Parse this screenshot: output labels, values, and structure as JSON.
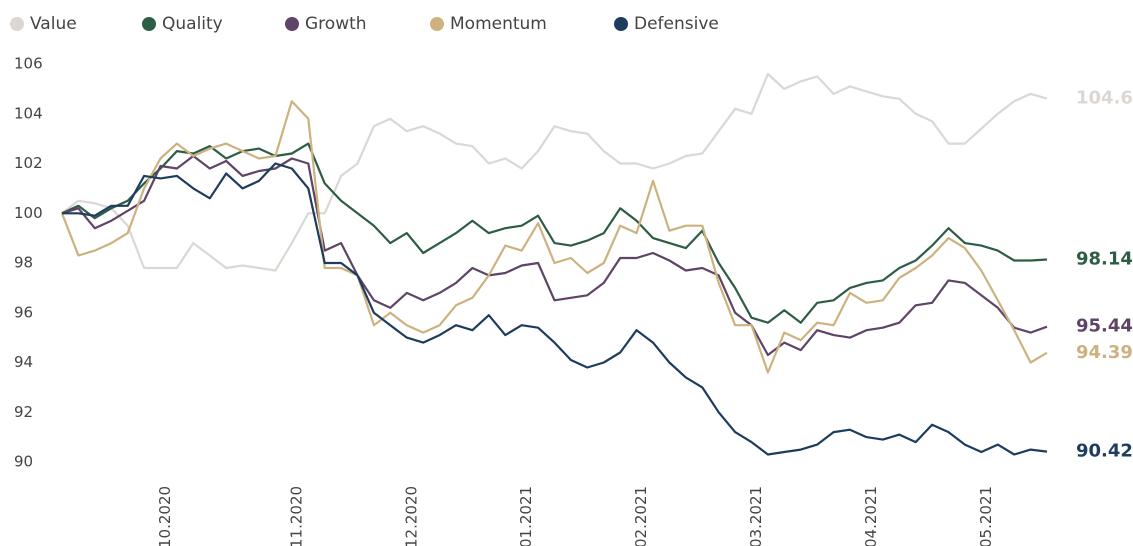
{
  "chart_data": {
    "type": "line",
    "categories": [
      null,
      null,
      null,
      null,
      null,
      null,
      "10.2020",
      null,
      null,
      null,
      null,
      null,
      null,
      null,
      "11.2020",
      null,
      null,
      null,
      null,
      null,
      null,
      "12.2020",
      null,
      null,
      null,
      null,
      null,
      null,
      "01.2021",
      null,
      null,
      null,
      null,
      null,
      null,
      "02.2021",
      null,
      null,
      null,
      null,
      null,
      null,
      "03.2021",
      null,
      null,
      null,
      null,
      null,
      null,
      "04.2021",
      null,
      null,
      null,
      null,
      null,
      null,
      "05.2021",
      null,
      null,
      null,
      null
    ],
    "ylim": [
      90,
      106
    ],
    "yticks": [
      90,
      92,
      94,
      96,
      98,
      100,
      102,
      104,
      106
    ],
    "series": [
      {
        "name": "Value",
        "color": "#dcd7d2",
        "values": [
          100,
          100.5,
          100.4,
          100.2,
          99.5,
          97.8,
          97.8,
          97.8,
          98.8,
          98.3,
          97.8,
          97.9,
          97.8,
          97.7,
          98.8,
          100,
          100,
          101.5,
          102,
          103.5,
          103.8,
          103.3,
          103.5,
          103.2,
          102.8,
          102.7,
          102,
          102.2,
          101.8,
          102.5,
          103.5,
          103.3,
          103.2,
          102.5,
          102,
          102,
          101.8,
          102,
          102.3,
          102.4,
          103.3,
          104.2,
          104,
          105.6,
          105,
          105.3,
          105.5,
          104.8,
          105.1,
          104.9,
          104.7,
          104.6,
          104,
          103.7,
          102.8,
          102.8,
          103.4,
          104,
          104.5,
          104.8,
          104.61
        ]
      },
      {
        "name": "Quality",
        "color": "#2d5e45",
        "values": [
          100,
          100.3,
          99.8,
          100.2,
          100.5,
          101.2,
          101.8,
          102.5,
          102.4,
          102.7,
          102.2,
          102.5,
          102.6,
          102.3,
          102.4,
          102.8,
          101.2,
          100.5,
          100,
          99.5,
          98.8,
          99.2,
          98.4,
          98.8,
          99.2,
          99.7,
          99.2,
          99.4,
          99.5,
          99.9,
          98.8,
          98.7,
          98.9,
          99.2,
          100.2,
          99.7,
          99,
          98.8,
          98.6,
          99.3,
          98,
          97,
          95.8,
          95.6,
          96.1,
          95.6,
          96.4,
          96.5,
          97,
          97.2,
          97.3,
          97.8,
          98.1,
          98.7,
          99.4,
          98.8,
          98.7,
          98.5,
          98.1,
          98.1,
          98.14
        ]
      },
      {
        "name": "Growth",
        "color": "#5e4466",
        "values": [
          100,
          100.2,
          99.4,
          99.7,
          100.1,
          100.5,
          101.9,
          101.8,
          102.3,
          101.8,
          102.1,
          101.5,
          101.7,
          101.8,
          102.2,
          102,
          98.5,
          98.8,
          97.5,
          96.5,
          96.2,
          96.8,
          96.5,
          96.8,
          97.2,
          97.8,
          97.5,
          97.6,
          97.9,
          98,
          96.5,
          96.6,
          96.7,
          97.2,
          98.2,
          98.2,
          98.4,
          98.1,
          97.7,
          97.8,
          97.5,
          96,
          95.5,
          94.3,
          94.8,
          94.5,
          95.3,
          95.1,
          95,
          95.3,
          95.4,
          95.6,
          96.3,
          96.4,
          97.3,
          97.2,
          96.7,
          96.2,
          95.4,
          95.2,
          95.44
        ]
      },
      {
        "name": "Momentum",
        "color": "#cdb27f",
        "values": [
          100,
          98.3,
          98.5,
          98.8,
          99.2,
          101,
          102.2,
          102.8,
          102.3,
          102.6,
          102.8,
          102.5,
          102.2,
          102.3,
          104.5,
          103.8,
          97.8,
          97.8,
          97.5,
          95.5,
          96,
          95.5,
          95.2,
          95.5,
          96.3,
          96.6,
          97.5,
          98.7,
          98.5,
          99.6,
          98,
          98.2,
          97.6,
          98,
          99.5,
          99.2,
          101.3,
          99.3,
          99.5,
          99.5,
          97.2,
          95.5,
          95.5,
          93.6,
          95.2,
          94.9,
          95.6,
          95.5,
          96.8,
          96.4,
          96.5,
          97.4,
          97.8,
          98.3,
          99,
          98.6,
          97.7,
          96.5,
          95.3,
          94,
          94.39
        ]
      },
      {
        "name": "Defensive",
        "color": "#1d3c5e",
        "values": [
          100,
          100,
          99.9,
          100.3,
          100.3,
          101.5,
          101.4,
          101.5,
          101,
          100.6,
          101.6,
          101,
          101.3,
          102,
          101.8,
          101,
          98,
          98,
          97.5,
          96,
          95.5,
          95,
          94.8,
          95.1,
          95.5,
          95.3,
          95.9,
          95.1,
          95.5,
          95.4,
          94.8,
          94.1,
          93.8,
          94,
          94.4,
          95.3,
          94.8,
          94,
          93.4,
          93,
          92,
          91.2,
          90.8,
          90.3,
          90.4,
          90.5,
          90.7,
          91.2,
          91.3,
          91,
          90.9,
          91.1,
          90.8,
          91.5,
          91.2,
          90.7,
          90.4,
          90.7,
          90.3,
          90.5,
          90.42
        ]
      }
    ]
  }
}
